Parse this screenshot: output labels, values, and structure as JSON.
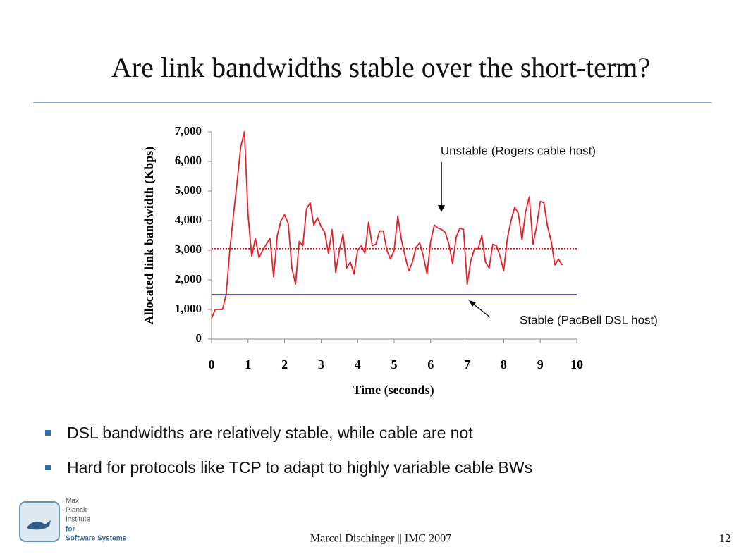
{
  "slide": {
    "title": "Are link bandwidths stable over the short-term?",
    "bullets": [
      "DSL bandwidths are relatively stable, while cable are not",
      "Hard for protocols like TCP to adapt to highly variable cable BWs"
    ],
    "footer": "Marcel Dischinger || IMC 2007",
    "page_number": "12",
    "logo": {
      "lines": [
        "Max",
        "Planck",
        "Institute"
      ],
      "lines_bold": [
        "for",
        "Software Systems"
      ]
    }
  },
  "chart_data": {
    "type": "line",
    "x_label": "Time (seconds)",
    "y_label": "Allocated link bandwidth (Kbps)",
    "xlim": [
      0,
      10
    ],
    "xticks": [
      0,
      1,
      2,
      3,
      4,
      5,
      6,
      7,
      8,
      9,
      10
    ],
    "ylim": [
      0,
      7000
    ],
    "yticks": [
      0,
      {
        "value": 1000,
        "label": "1,000"
      },
      {
        "value": 2000,
        "label": "2,000"
      },
      {
        "value": 3000,
        "label": "3,000"
      },
      {
        "value": 4000,
        "label": "4,000"
      },
      {
        "value": 5000,
        "label": "5,000"
      },
      {
        "value": 6000,
        "label": "6,000"
      },
      {
        "value": 7000,
        "label": "7,000"
      }
    ],
    "grid": false,
    "series": [
      {
        "color": "#e8202a",
        "x": [
          0,
          0.1,
          0.2,
          0.3,
          0.4,
          0.5,
          0.6,
          0.7,
          0.8,
          0.9,
          1,
          1.1,
          1.2,
          1.3,
          1.4,
          1.5,
          1.6,
          1.7,
          1.8,
          1.9,
          2,
          2.1,
          2.2,
          2.3,
          2.4,
          2.5,
          2.6,
          2.7,
          2.8,
          2.9,
          3,
          3.1,
          3.2,
          3.3,
          3.4,
          3.5,
          3.6,
          3.7,
          3.8,
          3.9,
          4,
          4.1,
          4.2,
          4.3,
          4.4,
          4.5,
          4.6,
          4.7,
          4.8,
          4.9,
          5,
          5.1,
          5.2,
          5.3,
          5.4,
          5.5,
          5.6,
          5.7,
          5.8,
          5.9,
          6,
          6.1,
          6.2,
          6.3,
          6.4,
          6.5,
          6.6,
          6.7,
          6.8,
          6.9,
          7,
          7.1,
          7.2,
          7.3,
          7.4,
          7.5,
          7.6,
          7.7,
          7.8,
          7.9,
          8,
          8.1,
          8.2,
          8.3,
          8.4,
          8.5,
          8.6,
          8.7,
          8.8,
          8.9,
          9,
          9.1,
          9.2,
          9.3,
          9.4,
          9.5,
          9.6
        ],
        "values": [
          700,
          1000,
          1000,
          1000,
          1500,
          3000,
          4200,
          5300,
          6500,
          7000,
          4200,
          2800,
          3400,
          2750,
          3000,
          3200,
          3400,
          2100,
          3500,
          4000,
          4200,
          3900,
          2400,
          1850,
          3300,
          3150,
          4400,
          4600,
          3850,
          4100,
          3800,
          3600,
          2900,
          3700,
          2250,
          3000,
          3550,
          2400,
          2600,
          2200,
          3000,
          3150,
          2900,
          3950,
          3150,
          3200,
          3650,
          3650,
          3000,
          2700,
          3000,
          4150,
          3350,
          2800,
          2300,
          2600,
          3100,
          3250,
          2800,
          2200,
          3300,
          3850,
          3750,
          3700,
          3600,
          3200,
          2550,
          3450,
          3750,
          3700,
          1850,
          2650,
          3050,
          3050,
          3500,
          2600,
          2400,
          3200,
          3150,
          2800,
          2300,
          3400,
          4000,
          4450,
          4250,
          3350,
          4300,
          4800,
          3200,
          3800,
          4650,
          4600,
          3800,
          3300,
          2500,
          2700,
          2500
        ]
      },
      {
        "color": "#3a3fbf",
        "x": [
          0,
          10
        ],
        "values": [
          1500,
          1500
        ]
      }
    ],
    "reference_line": {
      "value": 3050,
      "color": "#c00000"
    },
    "annotations": [
      "Unstable (Rogers cable host)",
      "Stable (PacBell DSL host)"
    ]
  }
}
